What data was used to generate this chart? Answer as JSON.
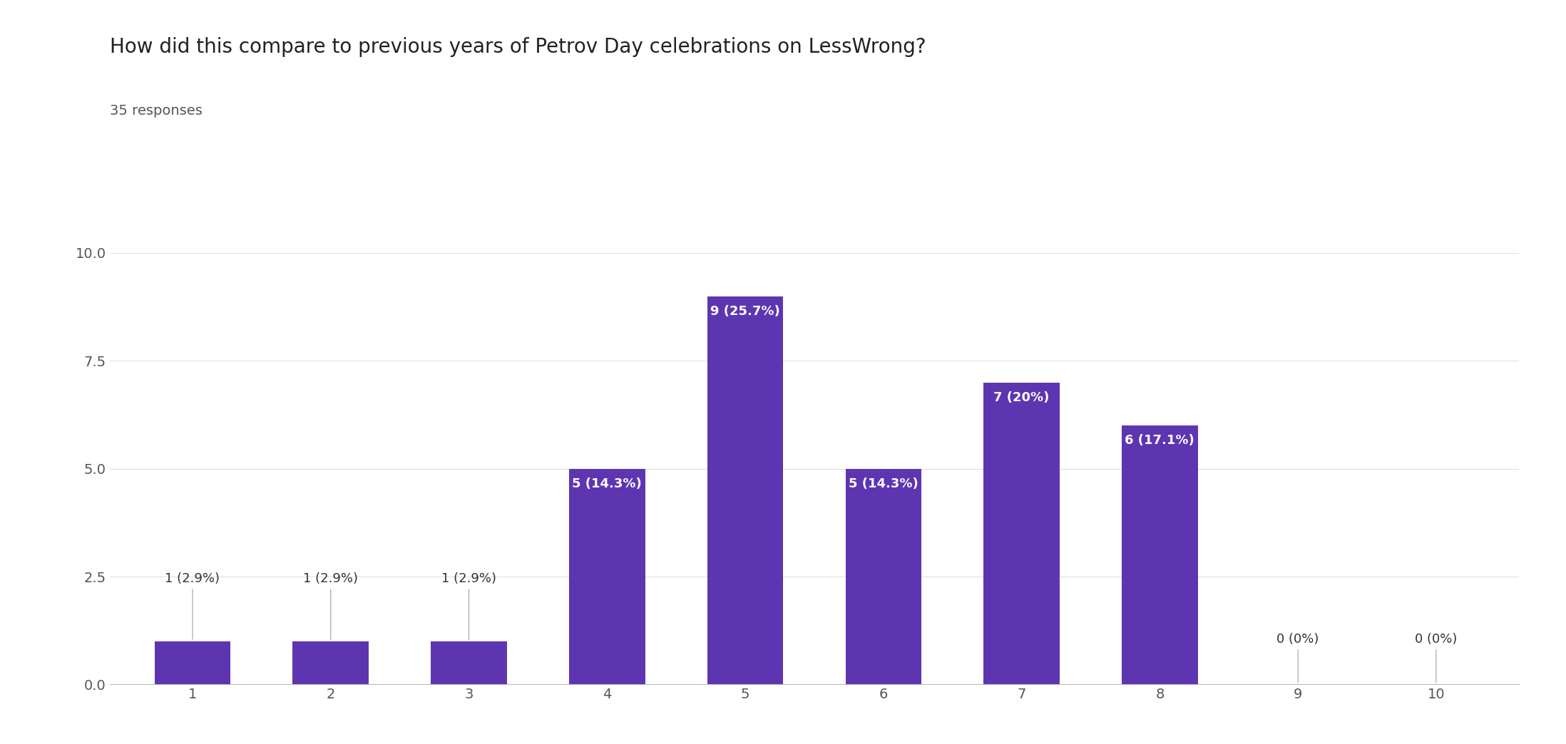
{
  "title": "How did this compare to previous years of Petrov Day celebrations on LessWrong?",
  "subtitle": "35 responses",
  "categories": [
    1,
    2,
    3,
    4,
    5,
    6,
    7,
    8,
    9,
    10
  ],
  "values": [
    1,
    1,
    1,
    5,
    9,
    5,
    7,
    6,
    0,
    0
  ],
  "percentages": [
    "2.9%",
    "2.9%",
    "2.9%",
    "14.3%",
    "25.7%",
    "14.3%",
    "20%",
    "17.1%",
    "0%",
    "0%"
  ],
  "bar_color": "#5e35b1",
  "background_color": "#ffffff",
  "ylim": [
    0,
    10
  ],
  "yticks": [
    0.0,
    2.5,
    5.0,
    7.5,
    10.0
  ],
  "title_fontsize": 20,
  "subtitle_fontsize": 14,
  "tick_fontsize": 14,
  "label_fontsize": 13,
  "annotation_color_inside": "#ffffff",
  "annotation_color_outside": "#333333",
  "inside_threshold": 3
}
